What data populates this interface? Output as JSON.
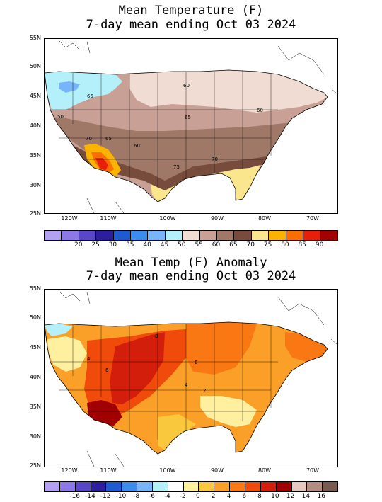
{
  "panel1": {
    "title_line1": "Mean Temperature (F)",
    "title_line2": "7-day mean ending Oct 03 2024",
    "lat_labels": [
      "55N",
      "50N",
      "45N",
      "40N",
      "35N",
      "30N",
      "25N"
    ],
    "lon_labels": [
      "120W",
      "110W",
      "100W",
      "90W",
      "80W",
      "70W"
    ],
    "contour_labels": [
      "65",
      "60",
      "50",
      "60",
      "65",
      "70",
      "65",
      "60",
      "70",
      "75"
    ],
    "colorbar": {
      "labels": [
        "20",
        "25",
        "30",
        "35",
        "40",
        "45",
        "50",
        "55",
        "60",
        "65",
        "70",
        "75",
        "80",
        "85",
        "90"
      ],
      "colors": [
        "#b4a0f0",
        "#8c78e6",
        "#5a46c8",
        "#2d1ea0",
        "#1e5ad2",
        "#3c8cf0",
        "#78b4fa",
        "#b4f0fa",
        "#f0dcd2",
        "#c8a096",
        "#a07868",
        "#784c3c",
        "#fae68c",
        "#fab400",
        "#fa6e00",
        "#e61e0a",
        "#a00000"
      ]
    }
  },
  "panel2": {
    "title_line1": "Mean Temp (F) Anomaly",
    "title_line2": "7-day mean ending Oct 03 2024",
    "lat_labels": [
      "55N",
      "50N",
      "45N",
      "40N",
      "35N",
      "30N",
      "25N"
    ],
    "lon_labels": [
      "120W",
      "110W",
      "100W",
      "90W",
      "80W",
      "70W"
    ],
    "contour_labels": [
      "8",
      "6",
      "6",
      "4",
      "2",
      "4"
    ],
    "colorbar": {
      "labels": [
        "-16",
        "-14",
        "-12",
        "-10",
        "-8",
        "-6",
        "-4",
        "-2",
        "0",
        "2",
        "4",
        "6",
        "8",
        "10",
        "12",
        "14",
        "16"
      ],
      "colors": [
        "#b4a0f0",
        "#8c78e6",
        "#5a46c8",
        "#2d1ea0",
        "#1e5ad2",
        "#3c8cf0",
        "#78b4fa",
        "#b4f0fa",
        "#ffffff",
        "#fff0a0",
        "#fac83c",
        "#faa028",
        "#fa7814",
        "#f04b0a",
        "#d21e0a",
        "#a00000",
        "#e6c8be",
        "#b48c82",
        "#785a50"
      ]
    }
  }
}
